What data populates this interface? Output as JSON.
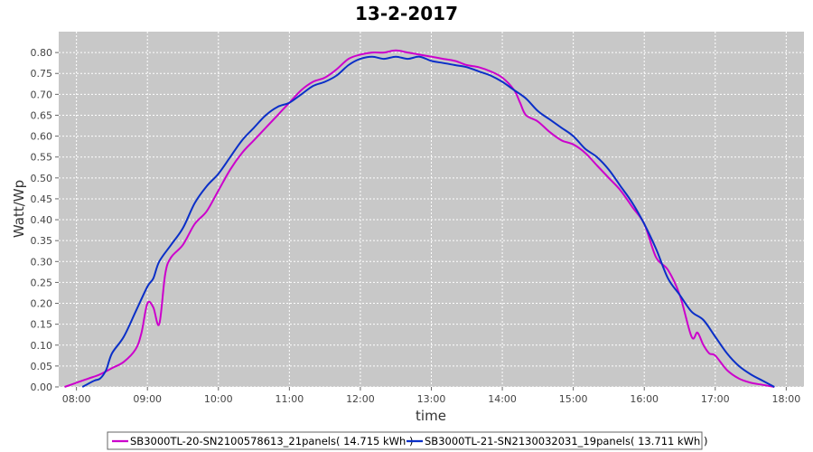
{
  "chart_data": {
    "type": "line",
    "title": "13-2-2017",
    "xlabel": "time",
    "ylabel": "Watt/Wp",
    "x_ticks": [
      "08:00",
      "09:00",
      "10:00",
      "11:00",
      "12:00",
      "13:00",
      "14:00",
      "15:00",
      "16:00",
      "17:00",
      "18:00"
    ],
    "y_ticks": [
      "0.00",
      "0.05",
      "0.10",
      "0.15",
      "0.20",
      "0.25",
      "0.30",
      "0.35",
      "0.40",
      "0.45",
      "0.50",
      "0.55",
      "0.60",
      "0.65",
      "0.70",
      "0.75",
      "0.80"
    ],
    "xlim": [
      "07:45",
      "18:15"
    ],
    "ylim": [
      0,
      0.85
    ],
    "grid": true,
    "legend_position": "bottom",
    "colors": {
      "plot_bg": "#c8c8c8",
      "grid": "#ffffff"
    },
    "series": [
      {
        "name": "SB3000TL-20-SN2100578613_21panels( 14.715 kWh )",
        "color": "#cc00cc",
        "x": [
          "07:50",
          "08:00",
          "08:10",
          "08:20",
          "08:30",
          "08:40",
          "08:50",
          "08:55",
          "09:00",
          "09:05",
          "09:10",
          "09:15",
          "09:20",
          "09:30",
          "09:40",
          "09:50",
          "10:00",
          "10:10",
          "10:20",
          "10:30",
          "10:40",
          "10:50",
          "11:00",
          "11:10",
          "11:20",
          "11:30",
          "11:40",
          "11:50",
          "12:00",
          "12:10",
          "12:20",
          "12:30",
          "12:40",
          "12:50",
          "13:00",
          "13:10",
          "13:20",
          "13:30",
          "13:40",
          "13:50",
          "14:00",
          "14:10",
          "14:15",
          "14:20",
          "14:30",
          "14:40",
          "14:50",
          "15:00",
          "15:10",
          "15:20",
          "15:30",
          "15:40",
          "15:50",
          "16:00",
          "16:10",
          "16:20",
          "16:30",
          "16:40",
          "16:45",
          "16:50",
          "16:55",
          "17:00",
          "17:10",
          "17:20",
          "17:30",
          "17:40",
          "17:50"
        ],
        "y": [
          0.0,
          0.01,
          0.02,
          0.03,
          0.045,
          0.06,
          0.09,
          0.13,
          0.2,
          0.19,
          0.15,
          0.27,
          0.31,
          0.34,
          0.39,
          0.42,
          0.47,
          0.52,
          0.56,
          0.59,
          0.62,
          0.65,
          0.68,
          0.71,
          0.73,
          0.74,
          0.76,
          0.785,
          0.795,
          0.8,
          0.8,
          0.805,
          0.8,
          0.795,
          0.79,
          0.785,
          0.78,
          0.77,
          0.765,
          0.755,
          0.74,
          0.71,
          0.68,
          0.65,
          0.635,
          0.61,
          0.59,
          0.58,
          0.56,
          0.53,
          0.5,
          0.47,
          0.43,
          0.39,
          0.31,
          0.28,
          0.22,
          0.12,
          0.13,
          0.1,
          0.08,
          0.075,
          0.04,
          0.02,
          0.01,
          0.005,
          0.0
        ]
      },
      {
        "name": "SB3000TL-21-SN2130032031_19panels( 13.711 kWh )",
        "color": "#0a2fc8",
        "x": [
          "08:05",
          "08:15",
          "08:20",
          "08:25",
          "08:30",
          "08:40",
          "08:50",
          "09:00",
          "09:05",
          "09:10",
          "09:20",
          "09:30",
          "09:40",
          "09:50",
          "10:00",
          "10:10",
          "10:20",
          "10:30",
          "10:40",
          "10:50",
          "11:00",
          "11:10",
          "11:20",
          "11:30",
          "11:40",
          "11:50",
          "12:00",
          "12:10",
          "12:20",
          "12:30",
          "12:40",
          "12:50",
          "13:00",
          "13:10",
          "13:20",
          "13:30",
          "13:40",
          "13:50",
          "14:00",
          "14:10",
          "14:20",
          "14:30",
          "14:40",
          "14:50",
          "15:00",
          "15:10",
          "15:20",
          "15:30",
          "15:40",
          "15:50",
          "16:00",
          "16:10",
          "16:20",
          "16:30",
          "16:40",
          "16:50",
          "17:00",
          "17:10",
          "17:20",
          "17:30",
          "17:40",
          "17:50"
        ],
        "y": [
          0.0,
          0.015,
          0.02,
          0.04,
          0.08,
          0.12,
          0.18,
          0.24,
          0.26,
          0.3,
          0.34,
          0.38,
          0.44,
          0.48,
          0.51,
          0.55,
          0.59,
          0.62,
          0.65,
          0.67,
          0.68,
          0.7,
          0.72,
          0.73,
          0.745,
          0.77,
          0.785,
          0.79,
          0.785,
          0.79,
          0.785,
          0.79,
          0.78,
          0.775,
          0.77,
          0.765,
          0.755,
          0.745,
          0.73,
          0.71,
          0.69,
          0.66,
          0.64,
          0.62,
          0.6,
          0.57,
          0.55,
          0.52,
          0.48,
          0.44,
          0.39,
          0.33,
          0.26,
          0.22,
          0.18,
          0.16,
          0.12,
          0.08,
          0.05,
          0.03,
          0.015,
          0.0
        ]
      }
    ]
  }
}
